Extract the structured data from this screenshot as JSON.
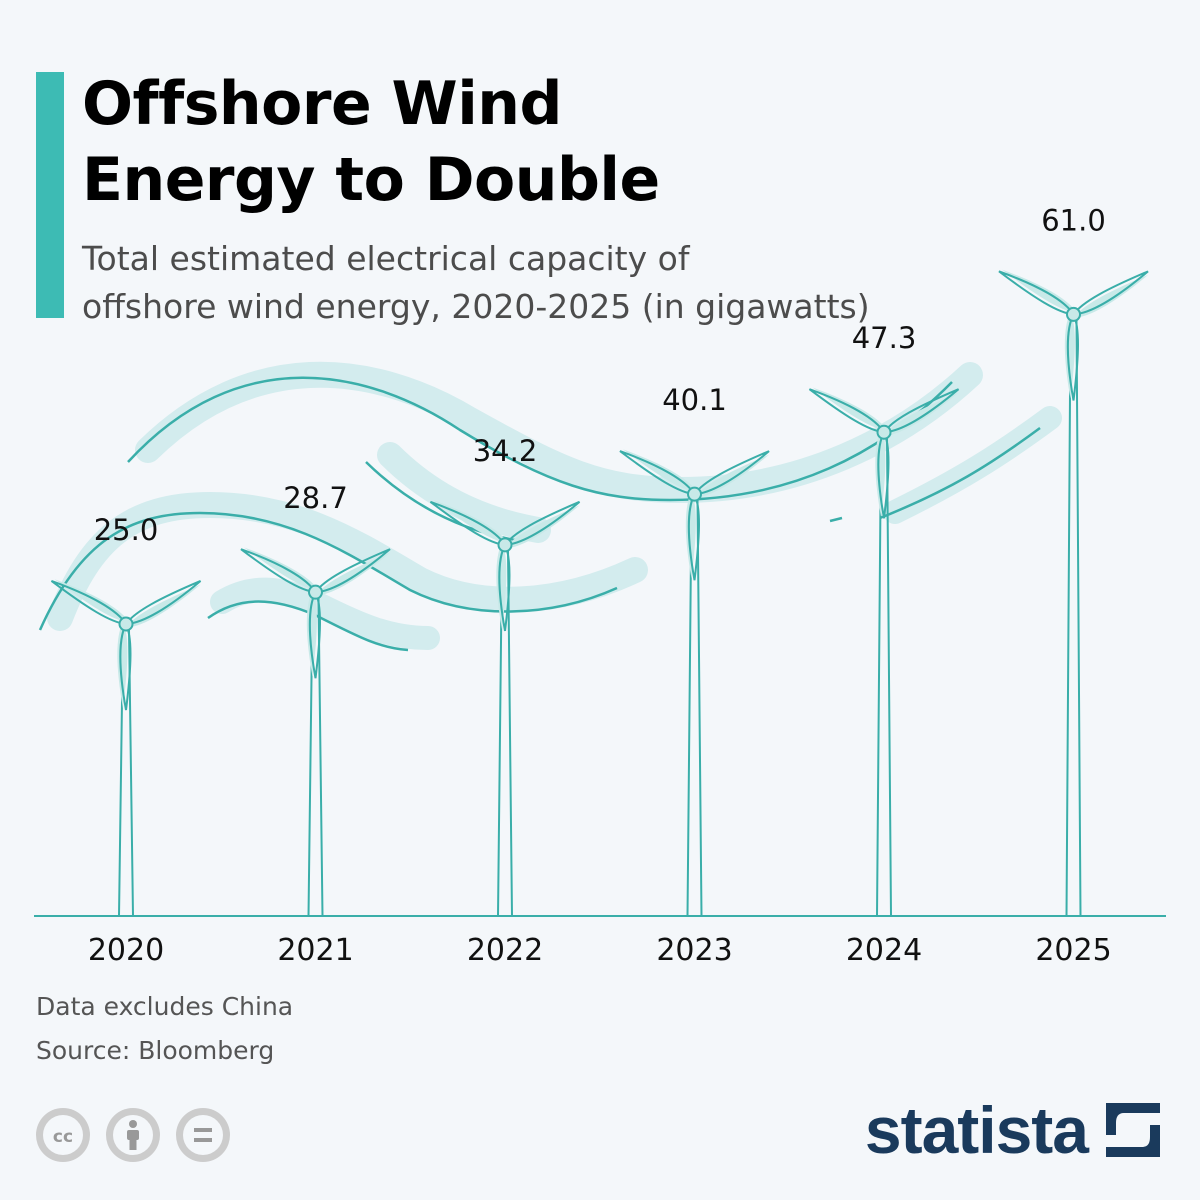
{
  "title_lines": [
    "Offshore Wind",
    "Energy to Double"
  ],
  "subtitle_lines": [
    "Total estimated electrical capacity of",
    "offshore wind energy, 2020-2025 (in gigawatts)"
  ],
  "chart_data": {
    "type": "bar",
    "title": "Offshore Wind Energy to Double",
    "subtitle": "Total estimated electrical capacity of offshore wind energy, 2020-2025 (in gigawatts)",
    "categories": [
      "2020",
      "2021",
      "2022",
      "2023",
      "2024",
      "2025"
    ],
    "values": [
      25.0,
      28.7,
      34.2,
      40.1,
      47.3,
      61.0
    ],
    "value_labels": [
      "25.0",
      "28.7",
      "34.2",
      "40.1",
      "47.3",
      "61.0"
    ],
    "unit": "gigawatts",
    "xlabel": "",
    "ylabel": "",
    "ylim": [
      0,
      61.0
    ],
    "mark": "wind turbine (height of tower encodes value)"
  },
  "notes": {
    "exclusion": "Data excludes China",
    "source": "Source: Bloomberg"
  },
  "brand": {
    "name": "statista"
  },
  "license_icons": [
    "cc-icon",
    "attribution-icon",
    "no-derivatives-icon"
  ],
  "colors": {
    "accent": "#3dbbb4",
    "turbine_stroke": "#3aaea9",
    "blade_fill": "#c8e9e8",
    "wind_halo": "#d3ecee",
    "brand": "#1a3a5c",
    "background": "#f4f7fa"
  }
}
